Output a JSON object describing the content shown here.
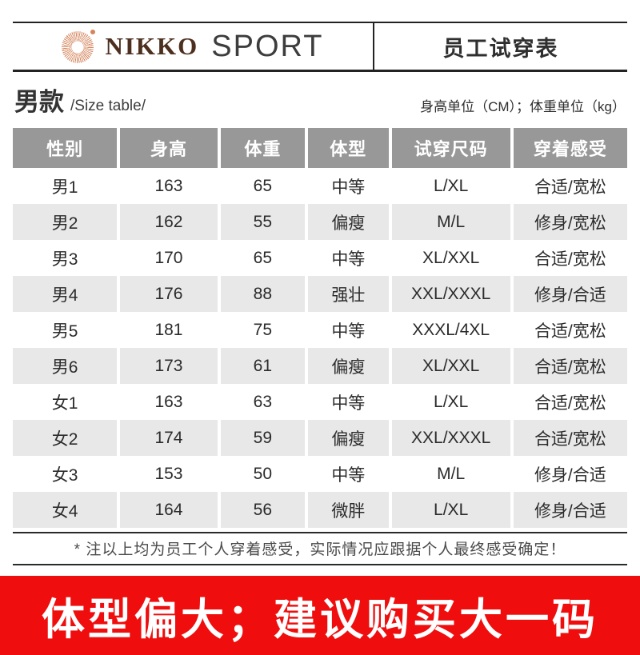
{
  "brand": {
    "name": "NIKKO",
    "suffix": "SPORT",
    "logo_icon": "sunburst-icon",
    "brand_brown": "#4c2f1e",
    "logo_orange": "#d4845c"
  },
  "header": {
    "sheet_title": "员工试穿表"
  },
  "section": {
    "title": "男款",
    "subtitle": "/Size table/",
    "units_note": "身高单位（CM）；体重单位（kg）"
  },
  "table": {
    "columns": [
      "性别",
      "身高",
      "体重",
      "体型",
      "试穿尺码",
      "穿着感受"
    ],
    "header_bg": "#989898",
    "alt_row_bg": "#e8e8e8",
    "rows": [
      [
        "男1",
        "163",
        "65",
        "中等",
        "L/XL",
        "合适/宽松"
      ],
      [
        "男2",
        "162",
        "55",
        "偏瘦",
        "M/L",
        "修身/宽松"
      ],
      [
        "男3",
        "170",
        "65",
        "中等",
        "XL/XXL",
        "合适/宽松"
      ],
      [
        "男4",
        "176",
        "88",
        "强壮",
        "XXL/XXXL",
        "修身/合适"
      ],
      [
        "男5",
        "181",
        "75",
        "中等",
        "XXXL/4XL",
        "合适/宽松"
      ],
      [
        "男6",
        "173",
        "61",
        "偏瘦",
        "XL/XXL",
        "合适/宽松"
      ],
      [
        "女1",
        "163",
        "63",
        "中等",
        "L/XL",
        "合适/宽松"
      ],
      [
        "女2",
        "174",
        "59",
        "偏瘦",
        "XXL/XXXL",
        "合适/宽松"
      ],
      [
        "女3",
        "153",
        "50",
        "中等",
        "M/L",
        "修身/合适"
      ],
      [
        "女4",
        "164",
        "56",
        "微胖",
        "L/XL",
        "修身/合适"
      ]
    ]
  },
  "footnote": "* 注以上均为员工个人穿着感受，实际情况应跟据个人最终感受确定！",
  "banner": {
    "text": "体型偏大；建议购买大一码",
    "bg_color": "#ef0d0d"
  }
}
